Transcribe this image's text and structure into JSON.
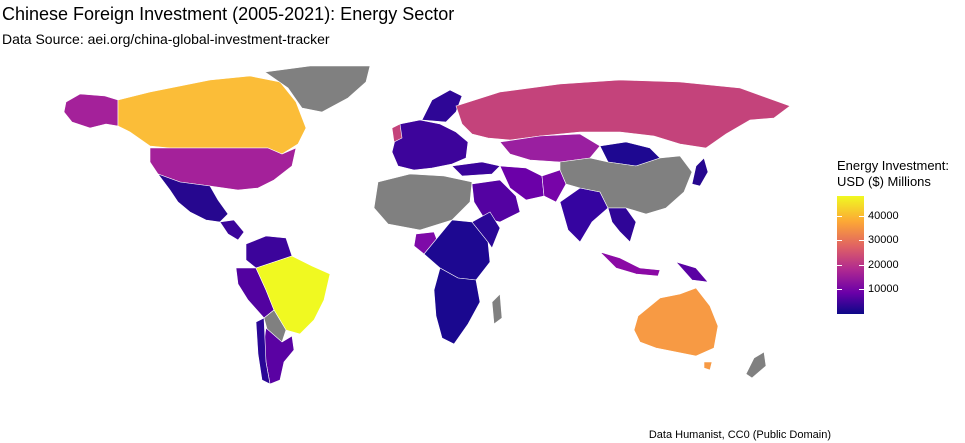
{
  "title": "Chinese Foreign Investment (2005-2021): Energy Sector",
  "subtitle": "Data Source: aei.org/china-global-investment-tracker",
  "caption": "Data Humanist, CC0 (Public Domain)",
  "legend": {
    "title_line1": "Energy Investment:",
    "title_line2": "USD ($) Millions",
    "ticks": [
      {
        "label": "40000",
        "value": 40000
      },
      {
        "label": "30000",
        "value": 30000
      },
      {
        "label": "20000",
        "value": 20000
      },
      {
        "label": "10000",
        "value": 10000
      }
    ],
    "range": [
      0,
      48000
    ]
  },
  "colors": {
    "no_data": "#808080",
    "scale": [
      "#0d0887",
      "#6a00a8",
      "#b12a90",
      "#e16462",
      "#fca636",
      "#f0f921"
    ]
  },
  "countries": [
    {
      "name": "Brazil",
      "color": "#f0f921"
    },
    {
      "name": "Canada",
      "color": "#fbbd38"
    },
    {
      "name": "Australia",
      "color": "#f79a44"
    },
    {
      "name": "Russia",
      "color": "#c4437b"
    },
    {
      "name": "United States",
      "color": "#a4219a"
    },
    {
      "name": "Kazakhstan",
      "color": "#9a1fa0"
    },
    {
      "name": "Argentina",
      "color": "#5a02a3"
    },
    {
      "name": "Peru",
      "color": "#5202a0"
    },
    {
      "name": "Nigeria",
      "color": "#7e0aa8"
    },
    {
      "name": "Saudi Arabia",
      "color": "#5402a2"
    },
    {
      "name": "Iran",
      "color": "#6b00a8"
    },
    {
      "name": "Pakistan",
      "color": "#7704a8"
    },
    {
      "name": "Indonesia",
      "color": "#8b0aa5"
    },
    {
      "name": "India",
      "color": "#3504a0"
    },
    {
      "name": "Mongolia",
      "color": "#1e0891"
    },
    {
      "name": "Mexico",
      "color": "#26078f"
    },
    {
      "name": "China",
      "color": "#808080"
    },
    {
      "name": "Greenland",
      "color": "#808080"
    }
  ]
}
